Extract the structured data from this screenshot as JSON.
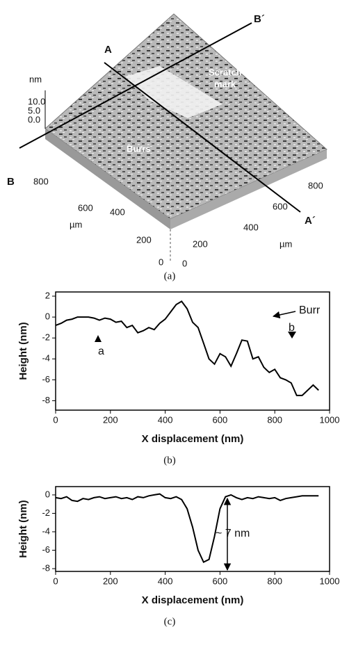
{
  "panel_a": {
    "caption": "(a)",
    "z_unit": "nm",
    "z_ticks": [
      "10.0",
      "5.0",
      "0.0"
    ],
    "line_a": "A",
    "line_a_end": "A´",
    "line_b": "B",
    "line_b_end": "B´",
    "scratch": [
      "Scratch",
      "mark"
    ],
    "burrs": "Burrs",
    "left_ticks": [
      "800",
      "600",
      "400",
      "200",
      "0"
    ],
    "left_unit": "µm",
    "right_ticks": [
      "800",
      "600",
      "400",
      "200",
      "0"
    ],
    "right_unit": "µm"
  },
  "chart_data": [
    {
      "type": "line",
      "caption": "(b)",
      "x_label": "X displacement (nm)",
      "y_label": "Height (nm)",
      "x": [
        0,
        20,
        40,
        60,
        80,
        100,
        120,
        140,
        160,
        180,
        200,
        220,
        240,
        260,
        280,
        300,
        320,
        340,
        360,
        380,
        400,
        420,
        440,
        460,
        480,
        500,
        520,
        540,
        560,
        580,
        600,
        620,
        640,
        660,
        680,
        700,
        720,
        740,
        760,
        780,
        800,
        820,
        840,
        860,
        880,
        900,
        920,
        940,
        960
      ],
      "series": [
        {
          "color": "#000000",
          "values": [
            -0.8,
            -0.6,
            -0.3,
            -0.2,
            0,
            0,
            0,
            -0.1,
            -0.3,
            -0.1,
            -0.2,
            -0.5,
            -0.4,
            -1.0,
            -0.8,
            -1.5,
            -1.3,
            -1.0,
            -1.2,
            -0.6,
            -0.2,
            0.5,
            1.2,
            1.5,
            0.8,
            -0.5,
            -1.0,
            -2.5,
            -4.0,
            -4.5,
            -3.5,
            -3.8,
            -4.7,
            -3.5,
            -2.2,
            -2.3,
            -4.0,
            -3.8,
            -4.8,
            -5.3,
            -5.0,
            -5.8,
            -6.0,
            -6.3,
            -7.5,
            -7.5,
            -7.0,
            -6.5,
            -7.0
          ]
        }
      ],
      "xlim": [
        0,
        1000
      ],
      "xticks": [
        0,
        200,
        400,
        600,
        800,
        1000
      ],
      "ylim": [
        -8.9,
        2.4
      ],
      "yticks": [
        2,
        0,
        -2,
        -4,
        -6,
        -8
      ],
      "annotations": [
        "Burr",
        "a",
        "b"
      ]
    },
    {
      "type": "line",
      "caption": "(c)",
      "x_label": "X displacement (nm)",
      "y_label": "Height (nm)",
      "x": [
        0,
        20,
        40,
        60,
        80,
        100,
        120,
        140,
        160,
        180,
        200,
        220,
        240,
        260,
        280,
        300,
        320,
        340,
        360,
        380,
        400,
        420,
        440,
        460,
        480,
        500,
        520,
        540,
        560,
        580,
        600,
        620,
        640,
        660,
        680,
        700,
        720,
        740,
        760,
        780,
        800,
        820,
        840,
        860,
        880,
        900,
        920,
        940,
        960
      ],
      "series": [
        {
          "color": "#000000",
          "values": [
            -0.3,
            -0.4,
            -0.2,
            -0.6,
            -0.7,
            -0.4,
            -0.5,
            -0.3,
            -0.2,
            -0.4,
            -0.3,
            -0.2,
            -0.4,
            -0.3,
            -0.5,
            -0.2,
            -0.3,
            -0.1,
            0,
            0.1,
            -0.3,
            -0.4,
            -0.2,
            -0.5,
            -1.5,
            -3.5,
            -6.0,
            -7.3,
            -7.0,
            -4.5,
            -1.5,
            -0.2,
            0,
            -0.3,
            -0.5,
            -0.3,
            -0.4,
            -0.2,
            -0.3,
            -0.4,
            -0.3,
            -0.6,
            -0.4,
            -0.3,
            -0.2,
            -0.1,
            -0.1,
            -0.1,
            -0.1
          ]
        }
      ],
      "xlim": [
        0,
        1000
      ],
      "xticks": [
        0,
        200,
        400,
        600,
        800,
        1000
      ],
      "ylim": [
        -8.3,
        0.9
      ],
      "yticks": [
        0,
        -2,
        -4,
        -6,
        -8
      ],
      "annotations": [
        "~ 7 nm"
      ]
    }
  ]
}
